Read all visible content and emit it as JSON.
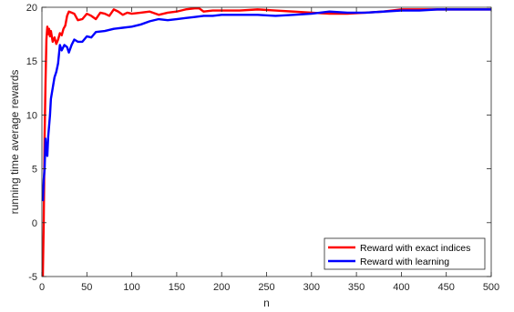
{
  "chart_data": {
    "type": "line",
    "title": "",
    "xlabel": "n",
    "ylabel": "running time average rewards",
    "xlim": [
      0,
      500
    ],
    "ylim": [
      -5,
      20
    ],
    "xticks": [
      0,
      50,
      100,
      150,
      200,
      250,
      300,
      350,
      400,
      450,
      500
    ],
    "yticks": [
      -5,
      0,
      5,
      10,
      15,
      20
    ],
    "grid": false,
    "legend_position": "bottom-right",
    "series": [
      {
        "name": "Reward with exact indices",
        "color": "#ff0000",
        "x": [
          1,
          2,
          3,
          4,
          5,
          6,
          7,
          8,
          9,
          10,
          12,
          14,
          16,
          18,
          20,
          22,
          24,
          26,
          28,
          30,
          33,
          36,
          40,
          45,
          50,
          55,
          60,
          65,
          70,
          75,
          80,
          85,
          90,
          95,
          100,
          110,
          120,
          130,
          140,
          150,
          160,
          170,
          175,
          180,
          190,
          200,
          220,
          240,
          260,
          280,
          300,
          320,
          340,
          360,
          380,
          400,
          420,
          440,
          460,
          480,
          500
        ],
        "y": [
          -5,
          0,
          8,
          13,
          17,
          18.2,
          17.5,
          18,
          17.3,
          17.8,
          16.8,
          17.2,
          16.6,
          17,
          17.6,
          17.4,
          18,
          18.3,
          19.2,
          19.6,
          19.5,
          19.4,
          18.8,
          18.9,
          19.4,
          19.2,
          18.9,
          19.5,
          19.4,
          19.2,
          19.8,
          19.6,
          19.3,
          19.5,
          19.4,
          19.5,
          19.6,
          19.3,
          19.5,
          19.6,
          19.8,
          19.9,
          19.9,
          19.6,
          19.7,
          19.7,
          19.7,
          19.8,
          19.7,
          19.6,
          19.5,
          19.4,
          19.4,
          19.5,
          19.6,
          19.8,
          19.8,
          19.8,
          19.8,
          19.8,
          19.8
        ]
      },
      {
        "name": "Reward with learning",
        "color": "#0000ff",
        "x": [
          1,
          2,
          3,
          4,
          5,
          6,
          7,
          8,
          9,
          10,
          12,
          14,
          16,
          18,
          20,
          22,
          25,
          28,
          30,
          33,
          36,
          40,
          45,
          50,
          55,
          60,
          70,
          80,
          90,
          100,
          110,
          120,
          130,
          140,
          150,
          160,
          170,
          180,
          190,
          200,
          220,
          240,
          260,
          280,
          300,
          320,
          340,
          360,
          380,
          400,
          420,
          440,
          460,
          480,
          500
        ],
        "y": [
          2,
          4,
          5,
          7.8,
          6.5,
          6.2,
          8,
          9,
          10,
          11.5,
          12.5,
          13.5,
          14,
          14.8,
          16.5,
          16,
          16.5,
          16.3,
          15.8,
          16.5,
          17,
          16.8,
          16.8,
          17.3,
          17.2,
          17.7,
          17.8,
          18,
          18.1,
          18.2,
          18.4,
          18.7,
          18.9,
          18.8,
          18.9,
          19,
          19.1,
          19.2,
          19.2,
          19.3,
          19.3,
          19.3,
          19.2,
          19.3,
          19.4,
          19.6,
          19.5,
          19.5,
          19.6,
          19.7,
          19.7,
          19.8,
          19.8,
          19.8,
          19.8
        ]
      }
    ]
  }
}
